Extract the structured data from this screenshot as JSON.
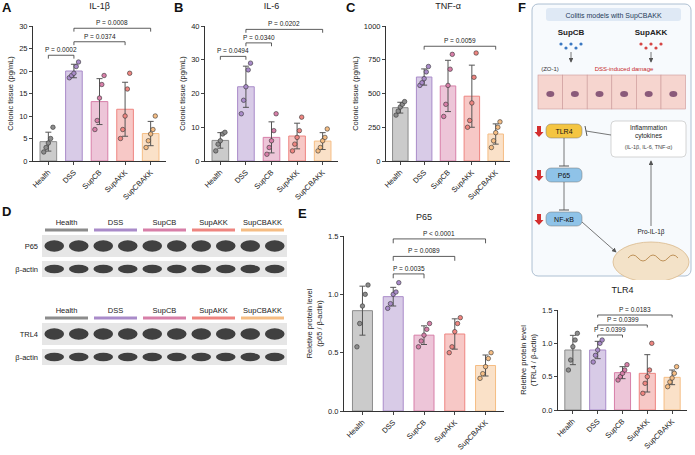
{
  "chart_data": [
    {
      "panel": "A",
      "type": "bar",
      "title": "IL-1β",
      "y_label": "Colonic tissue (pg/mL)",
      "categories": [
        "Health",
        "DSS",
        "SupCB",
        "SupAKK",
        "SupCBAKK"
      ],
      "values": [
        4.3,
        20,
        13.2,
        11.5,
        6.1
      ],
      "error": [
        2.1,
        1.5,
        5.1,
        6,
        2.7
      ],
      "points": [
        [
          2,
          3,
          4,
          5,
          7.5
        ],
        [
          18.5,
          19,
          19.5,
          21,
          22
        ],
        [
          7,
          9,
          14,
          17,
          19
        ],
        [
          5,
          7,
          10,
          16,
          19.5
        ],
        [
          3,
          4.5,
          6,
          7,
          10
        ]
      ],
      "colors": [
        "#8c8c8c",
        "#a98bc9",
        "#d77fa8",
        "#ee8580",
        "#f5bd84"
      ],
      "marker": "circle",
      "ylim": [
        0,
        30
      ],
      "yticks": [
        0,
        5,
        10,
        15,
        20,
        25,
        30
      ],
      "grid": false,
      "comparisons": [
        {
          "from": "Health",
          "to": "DSS",
          "label": "P = 0.0002"
        },
        {
          "from": "DSS",
          "to": "SupAKK",
          "label": "P = 0.0374"
        },
        {
          "from": "DSS",
          "to": "SupCBAKK",
          "label": "P = 0.0008"
        }
      ]
    },
    {
      "panel": "B",
      "type": "bar",
      "title": "IL-6",
      "y_label": "Colonic tissue (pg/mL)",
      "categories": [
        "Health",
        "DSS",
        "SupCB",
        "SupAKK",
        "SupCBAKK"
      ],
      "values": [
        6.1,
        22,
        7,
        7.4,
        5.9
      ],
      "error": [
        2.3,
        6.1,
        4.6,
        3.8,
        2.5
      ],
      "points": [
        [
          3,
          5,
          6,
          8,
          8.5
        ],
        [
          14,
          18,
          22,
          27,
          29
        ],
        [
          2,
          4,
          6,
          9,
          14
        ],
        [
          3,
          5,
          7,
          9,
          13
        ],
        [
          3,
          4,
          6,
          7,
          9.5
        ]
      ],
      "colors": [
        "#8c8c8c",
        "#a98bc9",
        "#d77fa8",
        "#ee8580",
        "#f5bd84"
      ],
      "marker": "circle",
      "ylim": [
        0,
        40
      ],
      "yticks": [
        0,
        10,
        20,
        30,
        40
      ],
      "grid": false,
      "comparisons": [
        {
          "from": "Health",
          "to": "DSS",
          "label": "P = 0.0494"
        },
        {
          "from": "DSS",
          "to": "SupCB",
          "label": "P = 0.0340"
        },
        {
          "from": "DSS",
          "to": "SupCBAKK",
          "label": "P = 0.0202"
        }
      ]
    },
    {
      "panel": "C",
      "type": "bar",
      "title": "TNF-α",
      "y_label": "Colonic tissue (pg/mL)",
      "categories": [
        "Health",
        "DSS",
        "SupCB",
        "SupAKK",
        "SupCBAKK"
      ],
      "values": [
        395,
        622,
        556,
        480,
        200
      ],
      "error": [
        40,
        60,
        190,
        230,
        75
      ],
      "points": [
        [
          340,
          370,
          400,
          420,
          440
        ],
        [
          560,
          580,
          610,
          660,
          700
        ],
        [
          330,
          420,
          560,
          680,
          790
        ],
        [
          250,
          300,
          430,
          620,
          800
        ],
        [
          100,
          150,
          210,
          250,
          290
        ]
      ],
      "colors": [
        "#8c8c8c",
        "#a98bc9",
        "#d77fa8",
        "#ee8580",
        "#f5bd84"
      ],
      "marker": "circle",
      "ylim": [
        0,
        1000
      ],
      "yticks": [
        0,
        250,
        500,
        750,
        1000
      ],
      "grid": false,
      "comparisons": [
        {
          "from": "DSS",
          "to": "SupCBAKK",
          "label": "P = 0.0059"
        }
      ]
    },
    {
      "panel": "E",
      "type": "bar",
      "title": "P65",
      "y_label": "Reletive protein level (p65 / β-actin)",
      "categories": [
        "Health",
        "DSS",
        "SupCB",
        "SupAKK",
        "SupCBAKK"
      ],
      "values": [
        0.86,
        0.98,
        0.65,
        0.66,
        0.39
      ],
      "error": [
        0.21,
        0.08,
        0.08,
        0.13,
        0.09
      ],
      "points": [
        [
          0.55,
          0.75,
          0.9,
          1.0,
          1.08
        ],
        [
          0.88,
          0.92,
          1.0,
          1.02,
          1.1
        ],
        [
          0.55,
          0.6,
          0.65,
          0.7,
          0.75
        ],
        [
          0.5,
          0.55,
          0.68,
          0.75,
          0.8
        ],
        [
          0.28,
          0.32,
          0.38,
          0.45,
          0.5
        ]
      ],
      "colors": [
        "#8c8c8c",
        "#a98bc9",
        "#d77fa8",
        "#ee8580",
        "#f5bd84"
      ],
      "marker": "circle",
      "ylim": [
        0,
        1.5
      ],
      "yticks": [
        {
          "value": 0,
          "label": "0.0"
        },
        0.5,
        {
          "value": 1,
          "label": "1.0"
        },
        1.5
      ],
      "grid": false,
      "comparisons": [
        {
          "from": "DSS",
          "to": "SupCB",
          "label": "P = 0.0035"
        },
        {
          "from": "DSS",
          "to": "SupAKK",
          "label": "P = 0.0089"
        },
        {
          "from": "DSS",
          "to": "SupCBAKK",
          "label": "P < 0.0001"
        }
      ]
    },
    {
      "type": "bar",
      "title": "TLR4",
      "y_label": "Reletive protein level (TRL4 / β-actin)",
      "categories": [
        "Health",
        "DSS",
        "SupCB",
        "SupAKK",
        "SupCBAKK"
      ],
      "values": [
        0.9,
        0.9,
        0.56,
        0.55,
        0.49
      ],
      "error": [
        0.22,
        0.13,
        0.09,
        0.28,
        0.11
      ],
      "points": [
        [
          0.6,
          0.75,
          0.95,
          1.05,
          1.15
        ],
        [
          0.72,
          0.82,
          0.9,
          1.0,
          1.05
        ],
        [
          0.45,
          0.5,
          0.55,
          0.6,
          0.68
        ],
        [
          0.25,
          0.4,
          0.5,
          0.6,
          1.0
        ],
        [
          0.35,
          0.42,
          0.48,
          0.55,
          0.65
        ]
      ],
      "colors": [
        "#8c8c8c",
        "#a98bc9",
        "#d77fa8",
        "#ee8580",
        "#f5bd84"
      ],
      "marker": "circle",
      "ylim": [
        0,
        1.5
      ],
      "yticks": [
        {
          "value": 0,
          "label": "0.0"
        },
        0.5,
        {
          "value": 1,
          "label": "1.0"
        },
        1.5
      ],
      "grid": false,
      "comparisons": [
        {
          "from": "DSS",
          "to": "SupCB",
          "label": "P = 0.0399"
        },
        {
          "from": "DSS",
          "to": "SupAKK",
          "label": "P = 0.0399"
        },
        {
          "from": "DSS",
          "to": "SupCBAKK",
          "label": "P = 0.0183"
        }
      ]
    }
  ],
  "blot": {
    "panel": "D",
    "groups": [
      {
        "name": "Health",
        "color": "#8c8c8c"
      },
      {
        "name": "DSS",
        "color": "#a98bc9"
      },
      {
        "name": "SupCB",
        "color": "#d77fa8"
      },
      {
        "name": "SupAKK",
        "color": "#ee8580"
      },
      {
        "name": "SupCBAKK",
        "color": "#f5bd84"
      }
    ],
    "blots": [
      {
        "rows": [
          "P65",
          "β-actin"
        ]
      },
      {
        "rows": [
          "TRL4",
          "β-actin"
        ]
      }
    ]
  },
  "diagram": {
    "panel": "F",
    "title": "Colitis models with SupCBAKK",
    "inputs": [
      "SupCB",
      "SupAKK"
    ],
    "barrier_label": "(ZO-1)",
    "damage_label": "DSS-induced damage",
    "nodes": [
      "TLR4",
      "P65",
      "NF-κB"
    ],
    "cytokines": "Inflammation cytokines",
    "cytokine_list": "(IL-1β, IL-6, TNF-α)",
    "precursor": "Pro-IL-1β"
  }
}
